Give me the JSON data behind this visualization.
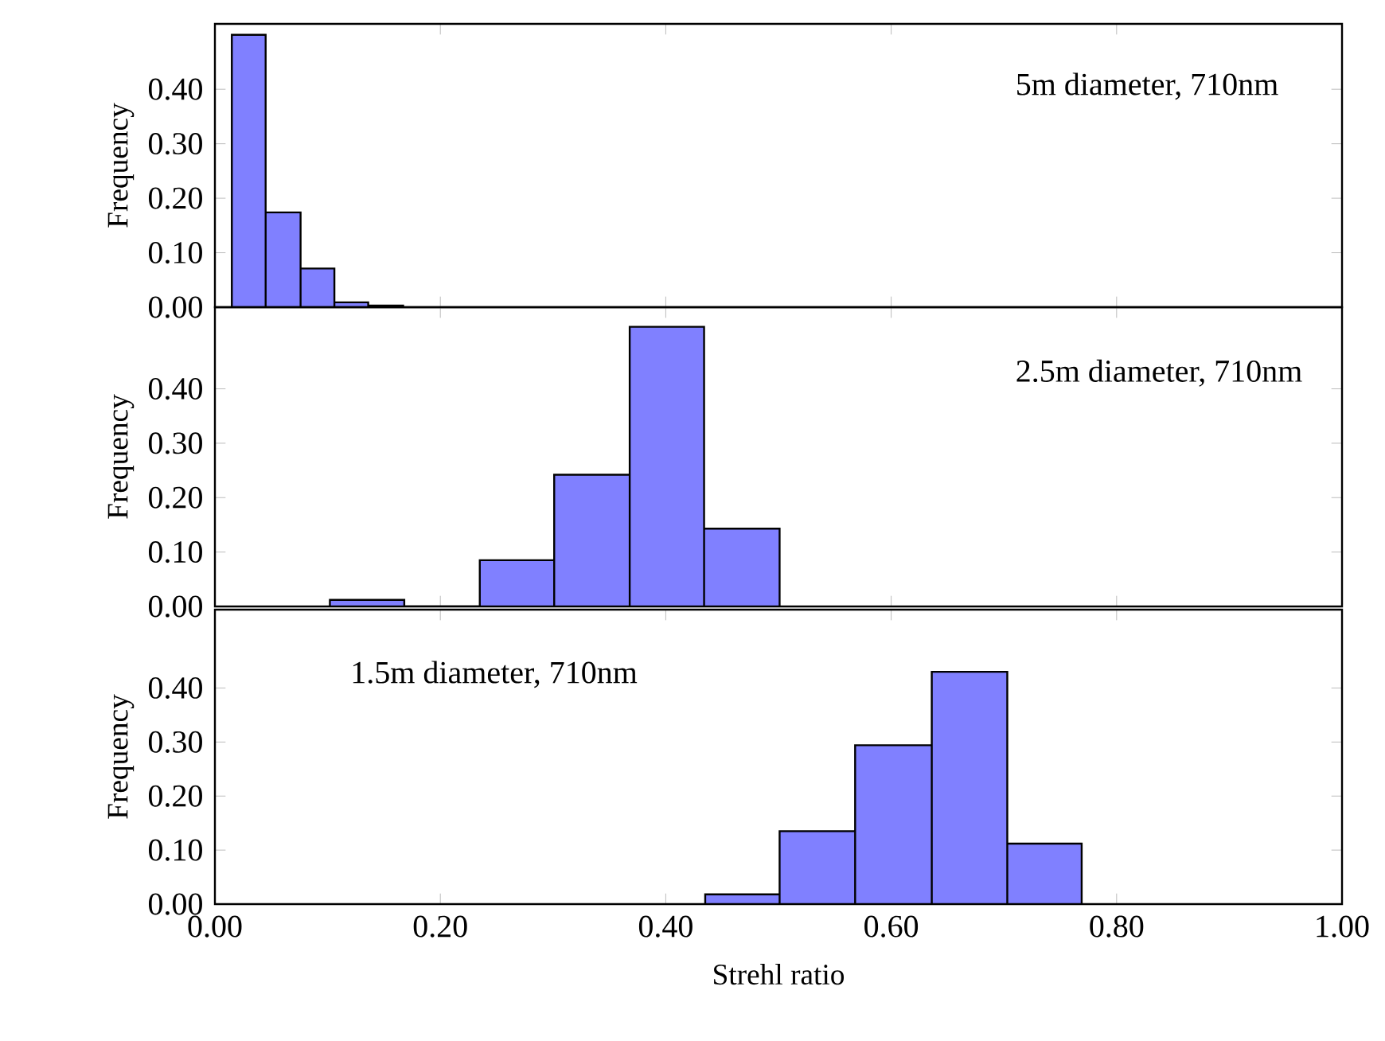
{
  "chart_data": [
    {
      "type": "histogram",
      "ylabel": "Frequency",
      "annotations": [
        "5m diameter, 710nm"
      ],
      "color": "#8080ff",
      "bins": [
        0.015,
        0.045,
        0.076,
        0.106,
        0.136,
        0.167
      ],
      "values": [
        0.5,
        0.174,
        0.071,
        0.009,
        0.003
      ],
      "xlim": [
        0,
        1
      ],
      "xticks": [
        {
          "value": 0,
          "label": null
        },
        {
          "value": 0.2,
          "label": null
        },
        {
          "value": 0.4,
          "label": null
        },
        {
          "value": 0.6,
          "label": null
        },
        {
          "value": 0.8,
          "label": null
        },
        {
          "value": 1,
          "label": null
        }
      ],
      "ylim": [
        0,
        0.52
      ],
      "yticks": [
        {
          "value": 0,
          "label": "0.00"
        },
        {
          "value": 0.1,
          "label": "0.10"
        },
        {
          "value": 0.2,
          "label": "0.20"
        },
        {
          "value": 0.3,
          "label": "0.30"
        },
        {
          "value": 0.4,
          "label": "0.40"
        }
      ],
      "tick_labels": "y"
    },
    {
      "type": "histogram",
      "ylabel": "Frequency",
      "annotations": [
        "2.5m diameter, 710nm"
      ],
      "color": "#8080ff",
      "bins": [
        0.102,
        0.168,
        0.235,
        0.301,
        0.368,
        0.434,
        0.501
      ],
      "values": [
        0.012,
        0,
        0.085,
        0.242,
        0.514,
        0.143
      ],
      "xlim": [
        0,
        1
      ],
      "xticks": [
        {
          "value": 0,
          "label": null
        },
        {
          "value": 0.2,
          "label": null
        },
        {
          "value": 0.4,
          "label": null
        },
        {
          "value": 0.6,
          "label": null
        },
        {
          "value": 0.8,
          "label": null
        },
        {
          "value": 1,
          "label": null
        }
      ],
      "ylim": [
        0,
        0.55
      ],
      "yticks": [
        {
          "value": 0,
          "label": "0.00"
        },
        {
          "value": 0.1,
          "label": "0.10"
        },
        {
          "value": 0.2,
          "label": "0.20"
        },
        {
          "value": 0.3,
          "label": "0.30"
        },
        {
          "value": 0.4,
          "label": "0.40"
        }
      ],
      "tick_labels": "y"
    },
    {
      "type": "histogram",
      "xlabel": "Strehl ratio",
      "ylabel": "Frequency",
      "annotations": [
        "1.5m diameter, 710nm"
      ],
      "color": "#8080ff",
      "bins": [
        0.435,
        0.501,
        0.568,
        0.636,
        0.703,
        0.769
      ],
      "values": [
        0.018,
        0.135,
        0.294,
        0.43,
        0.112
      ],
      "xlim": [
        0,
        1
      ],
      "xticks": [
        {
          "value": 0,
          "label": "0.00"
        },
        {
          "value": 0.2,
          "label": "0.20"
        },
        {
          "value": 0.4,
          "label": "0.40"
        },
        {
          "value": 0.6,
          "label": "0.60"
        },
        {
          "value": 0.8,
          "label": "0.80"
        },
        {
          "value": 1,
          "label": "1.00"
        }
      ],
      "ylim": [
        0,
        0.545
      ],
      "yticks": [
        {
          "value": 0,
          "label": "0.00"
        },
        {
          "value": 0.1,
          "label": "0.10"
        },
        {
          "value": 0.2,
          "label": "0.20"
        },
        {
          "value": 0.3,
          "label": "0.30"
        },
        {
          "value": 0.4,
          "label": "0.40"
        }
      ]
    }
  ]
}
